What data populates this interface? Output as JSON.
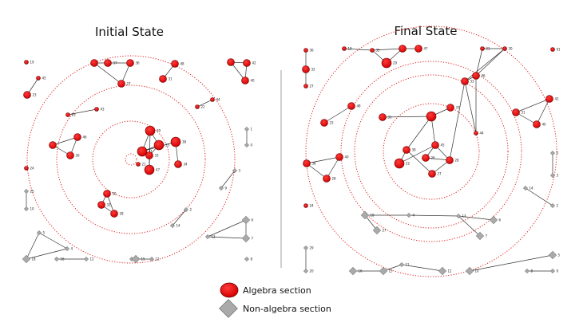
{
  "titles": {
    "initial": "Initial State",
    "final": "Final State"
  },
  "legend": {
    "algebra": "Algebra section",
    "non_algebra": "Non-algebra section",
    "algebra_color": "#ee0000",
    "non_algebra_color": "#999999"
  },
  "panels": {
    "initial": {
      "nodes": [
        {
          "id": "a1",
          "label": "19",
          "type": "algebra",
          "size": "s"
        },
        {
          "id": "a2",
          "label": "45",
          "type": "algebra",
          "size": "s"
        },
        {
          "id": "a3",
          "label": "23",
          "type": "algebra",
          "size": "m"
        },
        {
          "id": "a4",
          "label": "",
          "type": "algebra",
          "size": "m"
        },
        {
          "id": "a5",
          "label": "37",
          "type": "algebra",
          "size": "m"
        },
        {
          "id": "a6",
          "label": "36",
          "type": "algebra",
          "size": "m"
        },
        {
          "id": "a7",
          "label": "27",
          "type": "algebra",
          "size": "m"
        },
        {
          "id": "a8",
          "label": "48",
          "type": "algebra",
          "size": "m"
        },
        {
          "id": "a9",
          "label": "31",
          "type": "algebra",
          "size": "m"
        },
        {
          "id": "a10",
          "label": "",
          "type": "algebra",
          "size": "m"
        },
        {
          "id": "a11",
          "label": "42",
          "type": "algebra",
          "size": "m"
        },
        {
          "id": "a12",
          "label": "40",
          "type": "algebra",
          "size": "m"
        },
        {
          "id": "a13",
          "label": "44",
          "type": "algebra",
          "size": "s"
        },
        {
          "id": "a14",
          "label": "22",
          "type": "algebra",
          "size": "s"
        },
        {
          "id": "a15",
          "label": "29",
          "type": "algebra",
          "size": "s"
        },
        {
          "id": "a16",
          "label": "43",
          "type": "algebra",
          "size": "s"
        },
        {
          "id": "a17",
          "label": "46",
          "type": "algebra",
          "size": "m"
        },
        {
          "id": "a18",
          "label": "",
          "type": "algebra",
          "size": "m"
        },
        {
          "id": "a19",
          "label": "26",
          "type": "algebra",
          "size": "m"
        },
        {
          "id": "a20",
          "label": "39",
          "type": "algebra",
          "size": "l"
        },
        {
          "id": "a21",
          "label": "35",
          "type": "algebra",
          "size": "l"
        },
        {
          "id": "a22",
          "label": "41",
          "type": "algebra",
          "size": "l"
        },
        {
          "id": "a23",
          "label": "38",
          "type": "algebra",
          "size": "l"
        },
        {
          "id": "a24",
          "label": "33",
          "type": "algebra",
          "size": "m"
        },
        {
          "id": "a25",
          "label": "47",
          "type": "algebra",
          "size": "l"
        },
        {
          "id": "a26",
          "label": "34",
          "type": "algebra",
          "size": "m"
        },
        {
          "id": "a27",
          "label": "30",
          "type": "algebra",
          "size": "m"
        },
        {
          "id": "a28",
          "label": "32",
          "type": "algebra",
          "size": "m"
        },
        {
          "id": "a29",
          "label": "28",
          "type": "algebra",
          "size": "m"
        },
        {
          "id": "a30",
          "label": "21",
          "type": "algebra",
          "size": "s"
        },
        {
          "id": "a31",
          "label": "24",
          "type": "algebra",
          "size": "s"
        },
        {
          "id": "n1",
          "label": "1",
          "type": "non",
          "size": "s"
        },
        {
          "id": "n2",
          "label": "0",
          "type": "non",
          "size": "s"
        },
        {
          "id": "n3",
          "label": "3",
          "type": "non",
          "size": "s"
        },
        {
          "id": "n4",
          "label": "9",
          "type": "non",
          "size": "s"
        },
        {
          "id": "n5",
          "label": "25",
          "type": "non",
          "size": "s"
        },
        {
          "id": "n6",
          "label": "10",
          "type": "non",
          "size": "s"
        },
        {
          "id": "n7",
          "label": "2",
          "type": "non",
          "size": "s"
        },
        {
          "id": "n8",
          "label": "14",
          "type": "non",
          "size": "s"
        },
        {
          "id": "n9",
          "label": "4",
          "type": "non",
          "size": "s"
        },
        {
          "id": "n10",
          "label": "18",
          "type": "non",
          "size": "m"
        },
        {
          "id": "n11",
          "label": "5",
          "type": "non",
          "size": "s"
        },
        {
          "id": "n12",
          "label": "13",
          "type": "non",
          "size": "s"
        },
        {
          "id": "n13",
          "label": "20",
          "type": "non",
          "size": "s"
        },
        {
          "id": "n14",
          "label": "6",
          "type": "non",
          "size": "m"
        },
        {
          "id": "n15",
          "label": "7",
          "type": "non",
          "size": "m"
        },
        {
          "id": "n16",
          "label": "16",
          "type": "non",
          "size": "s"
        },
        {
          "id": "n17",
          "label": "12",
          "type": "non",
          "size": "s"
        },
        {
          "id": "n18",
          "label": "15",
          "type": "non",
          "size": "m"
        },
        {
          "id": "n19",
          "label": "11",
          "type": "non",
          "size": "s"
        },
        {
          "id": "n20",
          "label": "8",
          "type": "non",
          "size": "s"
        }
      ],
      "edges": [
        [
          "a2",
          "a3"
        ],
        [
          "a4",
          "a5"
        ],
        [
          "a5",
          "a6"
        ],
        [
          "a4",
          "a7"
        ],
        [
          "a6",
          "a7"
        ],
        [
          "a8",
          "a9"
        ],
        [
          "a10",
          "a11"
        ],
        [
          "a10",
          "a12"
        ],
        [
          "a11",
          "a12"
        ],
        [
          "a13",
          "a14"
        ],
        [
          "a15",
          "a16"
        ],
        [
          "a17",
          "a18"
        ],
        [
          "a17",
          "a19"
        ],
        [
          "a18",
          "a19"
        ],
        [
          "a20",
          "a21"
        ],
        [
          "a20",
          "a22"
        ],
        [
          "a21",
          "a22"
        ],
        [
          "a21",
          "a24"
        ],
        [
          "a22",
          "a23"
        ],
        [
          "a20",
          "a25"
        ],
        [
          "a23",
          "a26"
        ],
        [
          "a24",
          "a25"
        ],
        [
          "a27",
          "a28"
        ],
        [
          "a28",
          "a29"
        ],
        [
          "a27",
          "a29"
        ],
        [
          "n1",
          "n2"
        ],
        [
          "n3",
          "n4"
        ],
        [
          "n5",
          "n6"
        ],
        [
          "n7",
          "n8"
        ],
        [
          "n9",
          "n10"
        ],
        [
          "n9",
          "n11"
        ],
        [
          "n11",
          "n10"
        ],
        [
          "n12",
          "n14"
        ],
        [
          "n12",
          "n15"
        ],
        [
          "n14",
          "n15"
        ],
        [
          "n16",
          "n17"
        ],
        [
          "n18",
          "n19"
        ]
      ]
    },
    "final": {
      "nodes": [
        {
          "id": "b1",
          "label": "36",
          "type": "algebra",
          "size": "s"
        },
        {
          "id": "b2",
          "label": "32",
          "type": "algebra",
          "size": "m"
        },
        {
          "id": "b3",
          "label": "27",
          "type": "algebra",
          "size": "s"
        },
        {
          "id": "b4",
          "label": "19",
          "type": "algebra",
          "size": "s"
        },
        {
          "id": "b5",
          "label": "35",
          "type": "algebra",
          "size": "s"
        },
        {
          "id": "b6",
          "label": "",
          "type": "algebra",
          "size": "m"
        },
        {
          "id": "b7",
          "label": "47",
          "type": "algebra",
          "size": "m"
        },
        {
          "id": "b8",
          "label": "29",
          "type": "algebra",
          "size": "l"
        },
        {
          "id": "b9",
          "label": "21",
          "type": "algebra",
          "size": "s"
        },
        {
          "id": "b10",
          "label": "30",
          "type": "algebra",
          "size": "s"
        },
        {
          "id": "b11",
          "label": "01",
          "type": "algebra",
          "size": "s"
        },
        {
          "id": "b12",
          "label": "46",
          "type": "algebra",
          "size": "m"
        },
        {
          "id": "b13",
          "label": "33",
          "type": "algebra",
          "size": "m"
        },
        {
          "id": "b14",
          "label": "42",
          "type": "algebra",
          "size": "m"
        },
        {
          "id": "b15",
          "label": "31",
          "type": "algebra",
          "size": "m"
        },
        {
          "id": "b16",
          "label": "40",
          "type": "algebra",
          "size": "m"
        },
        {
          "id": "b17",
          "label": "48",
          "type": "algebra",
          "size": "m"
        },
        {
          "id": "b18",
          "label": "23",
          "type": "algebra",
          "size": "m"
        },
        {
          "id": "b19",
          "label": "31",
          "type": "algebra",
          "size": "m"
        },
        {
          "id": "b20",
          "label": "37",
          "type": "algebra",
          "size": "m"
        },
        {
          "id": "b21",
          "label": "44",
          "type": "algebra",
          "size": "s"
        },
        {
          "id": "b22",
          "label": "",
          "type": "algebra",
          "size": "l"
        },
        {
          "id": "b23",
          "label": "45",
          "type": "algebra",
          "size": "m"
        },
        {
          "id": "b24",
          "label": "39",
          "type": "algebra",
          "size": "m"
        },
        {
          "id": "b25",
          "label": "22",
          "type": "algebra",
          "size": "l"
        },
        {
          "id": "b26",
          "label": "26",
          "type": "algebra",
          "size": "m"
        },
        {
          "id": "b27",
          "label": "28",
          "type": "algebra",
          "size": "m"
        },
        {
          "id": "b28",
          "label": "27",
          "type": "algebra",
          "size": "m"
        },
        {
          "id": "b29",
          "label": "40",
          "type": "algebra",
          "size": "m"
        },
        {
          "id": "b30",
          "label": "38",
          "type": "algebra",
          "size": "m"
        },
        {
          "id": "b31",
          "label": "28",
          "type": "algebra",
          "size": "m"
        },
        {
          "id": "b32",
          "label": "24",
          "type": "algebra",
          "size": "s"
        },
        {
          "id": "m1",
          "label": "0",
          "type": "non",
          "size": "s"
        },
        {
          "id": "m2",
          "label": "3",
          "type": "non",
          "size": "s"
        },
        {
          "id": "m3",
          "label": "14",
          "type": "non",
          "size": "s"
        },
        {
          "id": "m4",
          "label": "2",
          "type": "non",
          "size": "s"
        },
        {
          "id": "m5",
          "label": "18",
          "type": "non",
          "size": "m"
        },
        {
          "id": "m6",
          "label": "4",
          "type": "non",
          "size": "s"
        },
        {
          "id": "m7",
          "label": "27",
          "type": "non",
          "size": "m"
        },
        {
          "id": "m8",
          "label": "13",
          "type": "non",
          "size": "s"
        },
        {
          "id": "m9",
          "label": "6",
          "type": "non",
          "size": "m"
        },
        {
          "id": "m10",
          "label": "7",
          "type": "non",
          "size": "m"
        },
        {
          "id": "m11",
          "label": "29",
          "type": "non",
          "size": "s"
        },
        {
          "id": "m12",
          "label": "20",
          "type": "non",
          "size": "s"
        },
        {
          "id": "m13",
          "label": "16",
          "type": "non",
          "size": "m"
        },
        {
          "id": "m14",
          "label": "15",
          "type": "non",
          "size": "m"
        },
        {
          "id": "m15",
          "label": "11",
          "type": "non",
          "size": "s"
        },
        {
          "id": "m16",
          "label": "12",
          "type": "non",
          "size": "m"
        },
        {
          "id": "m17",
          "label": "10",
          "type": "non",
          "size": "m"
        },
        {
          "id": "m18",
          "label": "5",
          "type": "non",
          "size": "m"
        },
        {
          "id": "m19",
          "label": "8",
          "type": "non",
          "size": "s"
        },
        {
          "id": "m20",
          "label": "9",
          "type": "non",
          "size": "s"
        }
      ],
      "edges": [
        [
          "b1",
          "b2"
        ],
        [
          "b2",
          "b3"
        ],
        [
          "b4",
          "b5"
        ],
        [
          "b5",
          "b6"
        ],
        [
          "b6",
          "b7"
        ],
        [
          "b5",
          "b8"
        ],
        [
          "b6",
          "b8"
        ],
        [
          "b9",
          "b10"
        ],
        [
          "b10",
          "b12"
        ],
        [
          "b9",
          "b12"
        ],
        [
          "b12",
          "b13"
        ],
        [
          "b10",
          "b13"
        ],
        [
          "b13",
          "b21"
        ],
        [
          "b12",
          "b21"
        ],
        [
          "b14",
          "b15"
        ],
        [
          "b14",
          "b16"
        ],
        [
          "b15",
          "b16"
        ],
        [
          "b17",
          "b18"
        ],
        [
          "b19",
          "b22"
        ],
        [
          "b20",
          "b22"
        ],
        [
          "b22",
          "b23"
        ],
        [
          "b22",
          "b24"
        ],
        [
          "b23",
          "b25"
        ],
        [
          "b24",
          "b25"
        ],
        [
          "b23",
          "b26"
        ],
        [
          "b26",
          "b27"
        ],
        [
          "b23",
          "b27"
        ],
        [
          "b24",
          "b28"
        ],
        [
          "b28",
          "b27"
        ],
        [
          "b13",
          "b27"
        ],
        [
          "b29",
          "b30"
        ],
        [
          "b30",
          "b31"
        ],
        [
          "b29",
          "b31"
        ],
        [
          "m1",
          "m2"
        ],
        [
          "m3",
          "m4"
        ],
        [
          "m5",
          "m6"
        ],
        [
          "m6",
          "m8"
        ],
        [
          "m5",
          "m7"
        ],
        [
          "m8",
          "m9"
        ],
        [
          "m8",
          "m10"
        ],
        [
          "m11",
          "m12"
        ],
        [
          "m13",
          "m14"
        ],
        [
          "m14",
          "m15"
        ],
        [
          "m15",
          "m16"
        ],
        [
          "m17",
          "m18"
        ],
        [
          "m19",
          "m20"
        ]
      ]
    }
  }
}
